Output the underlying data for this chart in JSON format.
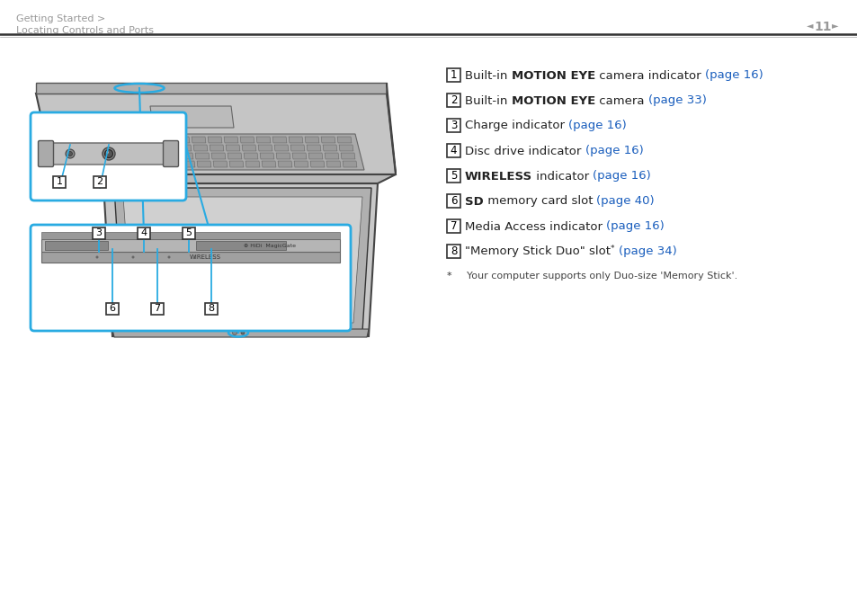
{
  "bg_color": "#ffffff",
  "header_text1": "Getting Started >",
  "header_text2": "Locating Controls and Ports",
  "page_number": "11",
  "header_color": "#999999",
  "box_outline_color": "#29abe2",
  "text_color": "#222222",
  "blue_color": "#1a5ebd",
  "items": [
    {
      "num": "1",
      "parts": [
        {
          "t": "Built-in ",
          "b": false,
          "c": "#222222"
        },
        {
          "t": "MOTION EYE",
          "b": true,
          "c": "#222222"
        },
        {
          "t": " camera indicator ",
          "b": false,
          "c": "#222222"
        },
        {
          "t": "(page 16)",
          "b": false,
          "c": "#1a5ebd"
        }
      ]
    },
    {
      "num": "2",
      "parts": [
        {
          "t": "Built-in ",
          "b": false,
          "c": "#222222"
        },
        {
          "t": "MOTION EYE",
          "b": true,
          "c": "#222222"
        },
        {
          "t": " camera ",
          "b": false,
          "c": "#222222"
        },
        {
          "t": "(page 33)",
          "b": false,
          "c": "#1a5ebd"
        }
      ]
    },
    {
      "num": "3",
      "parts": [
        {
          "t": "Charge indicator ",
          "b": false,
          "c": "#222222"
        },
        {
          "t": "(page 16)",
          "b": false,
          "c": "#1a5ebd"
        }
      ]
    },
    {
      "num": "4",
      "parts": [
        {
          "t": "Disc drive indicator ",
          "b": false,
          "c": "#222222"
        },
        {
          "t": "(page 16)",
          "b": false,
          "c": "#1a5ebd"
        }
      ]
    },
    {
      "num": "5",
      "parts": [
        {
          "t": "WIRELESS",
          "b": true,
          "c": "#222222"
        },
        {
          "t": " indicator ",
          "b": false,
          "c": "#222222"
        },
        {
          "t": "(page 16)",
          "b": false,
          "c": "#1a5ebd"
        }
      ]
    },
    {
      "num": "6",
      "parts": [
        {
          "t": "SD",
          "b": true,
          "c": "#222222"
        },
        {
          "t": " memory card slot ",
          "b": false,
          "c": "#222222"
        },
        {
          "t": "(page 40)",
          "b": false,
          "c": "#1a5ebd"
        }
      ]
    },
    {
      "num": "7",
      "parts": [
        {
          "t": "Media Access indicator ",
          "b": false,
          "c": "#222222"
        },
        {
          "t": "(page 16)",
          "b": false,
          "c": "#1a5ebd"
        }
      ]
    },
    {
      "num": "8",
      "parts": [
        {
          "t": "\"Memory Stick Duo\" slot",
          "b": false,
          "c": "#222222"
        },
        {
          "t": "*",
          "b": false,
          "c": "#222222",
          "sup": true
        },
        {
          "t": " ",
          "b": false,
          "c": "#222222"
        },
        {
          "t": "(page 34)",
          "b": false,
          "c": "#1a5ebd"
        }
      ]
    }
  ],
  "footnote_star": "*",
  "footnote_text": "    Your computer supports only Duo-size 'Memory Stick'."
}
